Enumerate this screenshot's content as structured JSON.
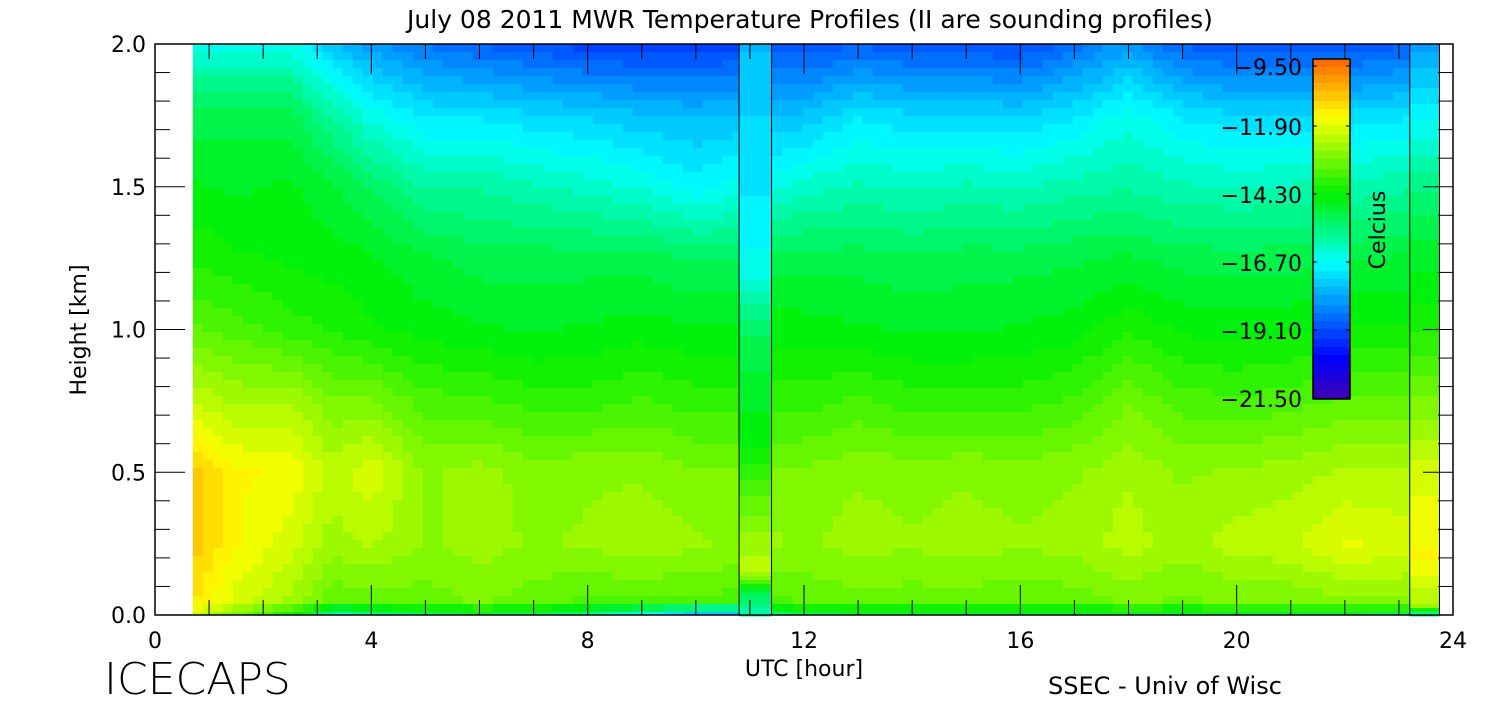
{
  "chart_data": {
    "type": "heatmap",
    "title": "July 08 2011 MWR Temperature Profiles (II are sounding profiles)",
    "xlabel": "UTC [hour]",
    "ylabel": "Height [km]",
    "xlim": [
      0,
      24
    ],
    "ylim": [
      0,
      2.0
    ],
    "x_ticks": [
      "0",
      "4",
      "8",
      "12",
      "16",
      "20",
      "24"
    ],
    "y_ticks": [
      "0.0",
      "0.5",
      "1.0",
      "1.5",
      "2.0"
    ],
    "colorbar": {
      "label": "Celcius",
      "range": [
        -21.5,
        -9.5
      ],
      "ticks": [
        "-9.50",
        "-11.90",
        "-14.30",
        "-16.70",
        "-19.10",
        "-21.50"
      ],
      "colormap": "rainbow (purple-blue-cyan-green-yellow-orange)"
    },
    "heights_km": [
      0,
      0.05,
      0.25,
      0.5,
      0.75,
      1.0,
      1.25,
      1.5,
      1.75,
      2.0
    ],
    "times_utc": [
      0.7,
      1.5,
      2.5,
      3.3,
      4,
      5,
      6,
      7,
      8,
      9,
      10,
      10.8,
      11.4,
      12,
      13,
      14,
      15,
      16,
      17,
      18,
      19,
      20,
      21,
      22,
      23.2,
      23.75
    ],
    "temperature_c": [
      [
        -12,
        -11.2,
        -10.8,
        -10.8,
        -12.2,
        -13.3,
        -14,
        -14.5,
        -15,
        -16.5
      ],
      [
        -13,
        -12,
        -11.5,
        -11.5,
        -12.5,
        -13.5,
        -14.2,
        -14.6,
        -15,
        -16.5
      ],
      [
        -14,
        -12.5,
        -12,
        -11.6,
        -12.5,
        -13.8,
        -14.3,
        -14.5,
        -15,
        -16.5
      ],
      [
        -16,
        -13.3,
        -12.6,
        -12.3,
        -13,
        -14,
        -14.4,
        -14.8,
        -15.8,
        -17.5
      ],
      [
        -15.5,
        -13.2,
        -12.4,
        -11.9,
        -13,
        -14.2,
        -14.5,
        -15.2,
        -16.5,
        -18
      ],
      [
        -15,
        -13.2,
        -12.8,
        -12.8,
        -13.5,
        -14.4,
        -14.8,
        -15.8,
        -17,
        -18.5
      ],
      [
        -14.8,
        -13,
        -12.6,
        -12.6,
        -13.6,
        -14.5,
        -15,
        -15.8,
        -17,
        -18.8
      ],
      [
        -15,
        -13.2,
        -12.8,
        -12.9,
        -13.8,
        -14.6,
        -15,
        -16,
        -17.2,
        -19
      ],
      [
        -15.5,
        -13.4,
        -12.7,
        -12.8,
        -13.8,
        -14.5,
        -15,
        -16.2,
        -17.3,
        -19.2
      ],
      [
        -16.5,
        -13.4,
        -12.5,
        -12.8,
        -13.6,
        -14.4,
        -15,
        -16.4,
        -17.5,
        -19.3
      ],
      [
        -17.5,
        -13.4,
        -12.7,
        -13,
        -13.8,
        -14.5,
        -15.2,
        -16.8,
        -17.6,
        -19.3
      ],
      [
        -17.5,
        -13.5,
        -12.8,
        -13,
        -13.8,
        -14.5,
        -15.2,
        -16.5,
        -17.5,
        -19.2
      ],
      [
        -15.5,
        -13.5,
        -12.7,
        -13,
        -13.8,
        -14.4,
        -15,
        -16.5,
        -17.5,
        -19
      ],
      [
        -15,
        -13.3,
        -12.8,
        -13,
        -13.8,
        -14.4,
        -15,
        -16.2,
        -17.5,
        -19
      ],
      [
        -14.8,
        -13.2,
        -12.6,
        -12.8,
        -13.6,
        -14.5,
        -15,
        -16,
        -17,
        -18.8
      ],
      [
        -14.8,
        -13.2,
        -12.7,
        -12.9,
        -13.8,
        -14.6,
        -15.1,
        -16.1,
        -17.2,
        -19
      ],
      [
        -14.8,
        -13.2,
        -12.6,
        -12.8,
        -13.8,
        -14.6,
        -15,
        -16,
        -17.2,
        -19
      ],
      [
        -14.8,
        -13.3,
        -12.7,
        -12.9,
        -13.8,
        -14.5,
        -15,
        -16.1,
        -17.3,
        -19.1
      ],
      [
        -14.8,
        -13.2,
        -12.6,
        -12.8,
        -13.6,
        -14.4,
        -14.9,
        -15.9,
        -17,
        -18.6
      ],
      [
        -14.8,
        -13,
        -12.3,
        -12.5,
        -13.1,
        -14,
        -14.8,
        -15.8,
        -16.5,
        -18
      ],
      [
        -14.8,
        -13.1,
        -12.6,
        -12.8,
        -13.5,
        -14.3,
        -15,
        -16,
        -17,
        -18.8
      ],
      [
        -14.8,
        -13,
        -12.3,
        -12.7,
        -13.6,
        -14.4,
        -15,
        -16.1,
        -17.2,
        -19
      ],
      [
        -14.8,
        -13,
        -12.2,
        -12.6,
        -13.5,
        -14.3,
        -15,
        -16,
        -17.2,
        -19
      ],
      [
        -14.8,
        -12.8,
        -11.8,
        -12.4,
        -13.3,
        -14.2,
        -14.9,
        -16,
        -17.2,
        -19
      ],
      [
        -15,
        -12.8,
        -12,
        -12.4,
        -13.3,
        -14.2,
        -14.8,
        -15.8,
        -17,
        -18.8
      ],
      [
        -15,
        -12.8,
        -12,
        -12.4,
        -13.3,
        -14.2,
        -14.8,
        -15.8,
        -17,
        -18.8
      ]
    ],
    "soundings": [
      {
        "t_start": 10.8,
        "t_end": 11.4,
        "heights_km": [
          0,
          0.08,
          0.15,
          0.3,
          0.6,
          1.0,
          1.2,
          1.5,
          1.8,
          2.0
        ],
        "temperature_c": [
          -16,
          -15,
          -12.2,
          -12.8,
          -14.3,
          -15.2,
          -16.5,
          -17,
          -17.3,
          -17.6
        ]
      },
      {
        "t_start": 23.2,
        "t_end": 23.75,
        "heights_km": [
          0,
          0.03,
          0.2,
          0.5,
          1.0,
          1.3,
          1.5,
          1.8,
          2.0
        ],
        "temperature_c": [
          -16,
          -12.5,
          -11.5,
          -12,
          -14,
          -14.8,
          -15.5,
          -17,
          -18
        ]
      }
    ]
  },
  "footer": {
    "left": "ICECAPS",
    "right": "SSEC - Univ of Wisc"
  }
}
